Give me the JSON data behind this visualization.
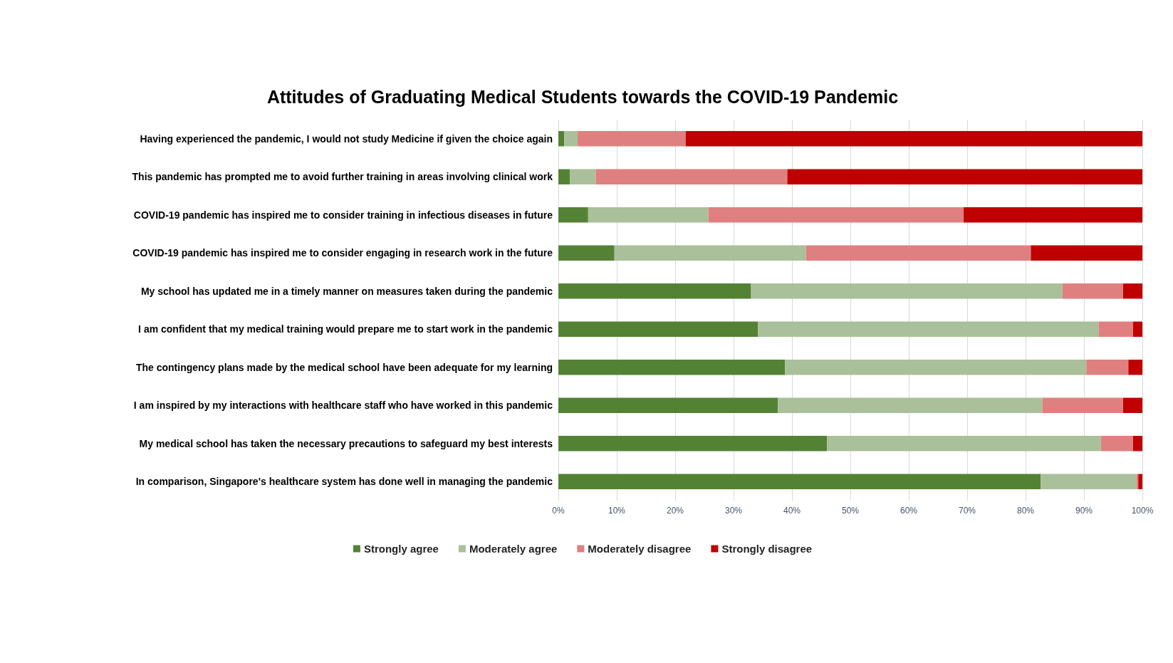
{
  "chart_data": {
    "type": "bar",
    "orientation": "horizontal",
    "stacked": true,
    "title": "Attitudes of Graduating Medical Students towards the COVID-19 Pandemic",
    "categories": [
      "Having experienced the pandemic, I would not study Medicine if given the choice again",
      "This pandemic has prompted me to avoid further training in areas involving clinical work",
      "COVID-19 pandemic has inspired me to consider training in infectious diseases in future",
      "COVID-19 pandemic has inspired me to consider engaging in research work in the future",
      "My school has updated me in a timely manner on measures taken during the pandemic",
      "I am confident that my medical training would prepare me to start work in the pandemic",
      "The contingency plans made by the medical school have been adequate for my learning",
      "I am inspired by my interactions with healthcare staff who have worked in this pandemic",
      "My medical school has taken the necessary precautions to safeguard my best interests",
      "In comparison, Singapore's healthcare system has done well in managing the pandemic"
    ],
    "series": [
      {
        "name": "Strongly agree",
        "color": "#548235",
        "values": [
          1.0,
          2.0,
          5.1,
          9.6,
          33.0,
          34.2,
          38.8,
          37.6,
          46.0,
          82.6
        ]
      },
      {
        "name": "Moderately agree",
        "color": "#a9c09a",
        "values": [
          2.3,
          4.4,
          20.6,
          32.8,
          53.3,
          58.3,
          51.6,
          45.3,
          46.9,
          16.4
        ]
      },
      {
        "name": "Moderately disagree",
        "color": "#e07f80",
        "values": [
          18.5,
          32.8,
          43.7,
          38.5,
          10.4,
          5.9,
          7.2,
          13.8,
          5.5,
          0.3
        ]
      },
      {
        "name": "Strongly disagree",
        "color": "#c00000",
        "values": [
          78.2,
          60.8,
          30.6,
          19.1,
          3.3,
          1.6,
          2.4,
          3.3,
          1.6,
          0.7
        ]
      }
    ],
    "xlim": [
      0,
      100
    ],
    "xticks": [
      {
        "value": 0,
        "label": "0%"
      },
      {
        "value": 10,
        "label": "10%"
      },
      {
        "value": 20,
        "label": "20%"
      },
      {
        "value": 30,
        "label": "30%"
      },
      {
        "value": 40,
        "label": "40%"
      },
      {
        "value": 50,
        "label": "50%"
      },
      {
        "value": 60,
        "label": "60%"
      },
      {
        "value": 70,
        "label": "70%"
      },
      {
        "value": 80,
        "label": "80%"
      },
      {
        "value": 90,
        "label": "90%"
      },
      {
        "value": 100,
        "label": "100%"
      }
    ],
    "grid": "x",
    "legend": "bottom"
  }
}
